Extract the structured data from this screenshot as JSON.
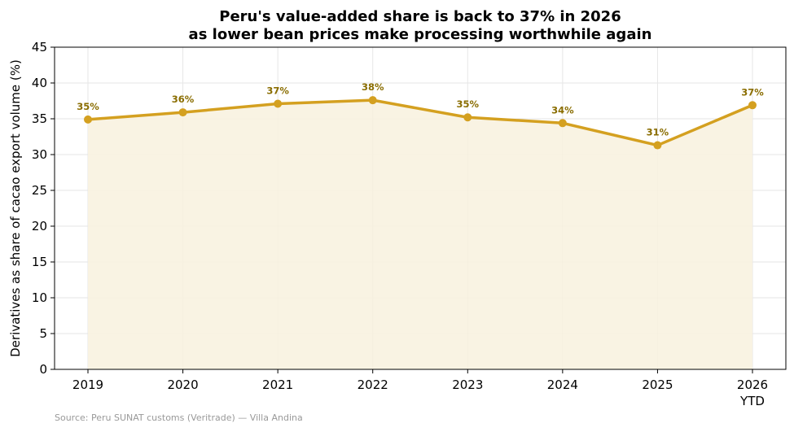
{
  "chart_data": {
    "type": "line",
    "title_line1": "Peru's value-added share is back to 37% in 2026",
    "title_line2": "as lower bean prices make processing worthwhile again",
    "xlabel": "",
    "ylabel": "Derivatives as share of cacao export volume (%)",
    "categories": [
      "2019",
      "2020",
      "2021",
      "2022",
      "2023",
      "2024",
      "2025",
      "2026"
    ],
    "category_sublabels": [
      "",
      "",
      "",
      "",
      "",
      "",
      "",
      "YTD"
    ],
    "values": [
      34.9,
      35.9,
      37.1,
      37.6,
      35.2,
      34.4,
      31.3,
      36.9
    ],
    "data_labels": [
      "35%",
      "36%",
      "37%",
      "38%",
      "35%",
      "34%",
      "31%",
      "37%"
    ],
    "ylim": [
      0,
      45
    ],
    "yticks": [
      0,
      5,
      10,
      15,
      20,
      25,
      30,
      35,
      40,
      45
    ],
    "grid": true,
    "area_fill": true,
    "line_color": "#d4a020",
    "fill_color": "#f8f1de",
    "label_color": "#8a6d00",
    "grid_color": "#e6e6e6"
  },
  "source": "Source: Peru SUNAT customs (Veritrade) — Villa Andina"
}
